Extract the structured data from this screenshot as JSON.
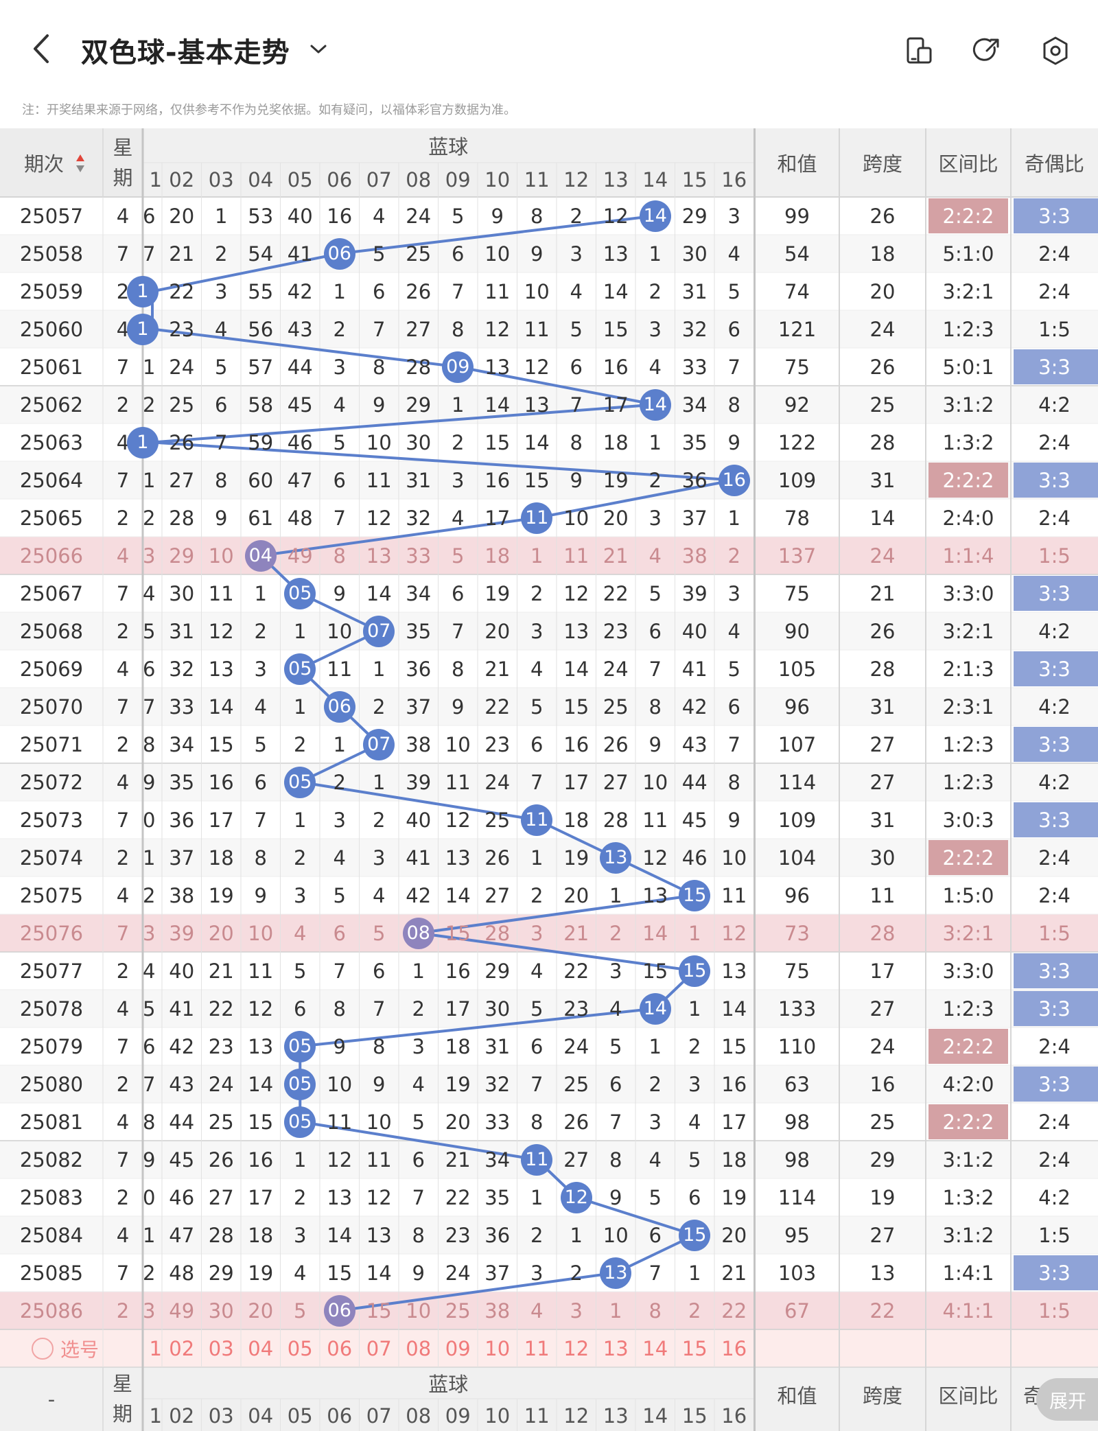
{
  "header": {
    "title": "双色球-基本走势",
    "icons": [
      "back-icon",
      "chevron-down-icon",
      "device-icon",
      "share-icon",
      "settings-icon"
    ]
  },
  "notice": "注：开奖结果来源于网络，仅供参考不作为兑奖依据。如有疑问，以福体彩官方数据为准。",
  "table": {
    "col_period": "期次",
    "col_week": "星期",
    "col_blue": "蓝球",
    "col_sum": "和值",
    "col_span": "跨度",
    "col_ratio": "区间比",
    "col_oddeven": "奇偶比",
    "blue_numbers": [
      "1",
      "02",
      "03",
      "04",
      "05",
      "06",
      "07",
      "08",
      "09",
      "10",
      "11",
      "12",
      "13",
      "14",
      "15",
      "16"
    ],
    "rows": [
      {
        "period": "25057",
        "week": "4",
        "fl": "6",
        "vals": [
          "20",
          "1",
          "53",
          "40",
          "16",
          "4",
          "24",
          "5",
          "9",
          "8",
          "2",
          "12",
          "",
          "29",
          "3"
        ],
        "blue": 14,
        "sum": "99",
        "span": "26",
        "ratio": "2:2:2",
        "oe": "3:3"
      },
      {
        "period": "25058",
        "week": "7",
        "fl": "7",
        "vals": [
          "21",
          "2",
          "54",
          "41",
          "",
          "5",
          "25",
          "6",
          "10",
          "9",
          "3",
          "13",
          "1",
          "30",
          "4"
        ],
        "blue": 6,
        "sum": "54",
        "span": "18",
        "ratio": "5:1:0",
        "oe": "2:4"
      },
      {
        "period": "25059",
        "week": "2",
        "fl": "",
        "vals": [
          "22",
          "3",
          "55",
          "42",
          "1",
          "6",
          "26",
          "7",
          "11",
          "10",
          "4",
          "14",
          "2",
          "31",
          "5"
        ],
        "blue": 1,
        "sum": "74",
        "span": "20",
        "ratio": "3:2:1",
        "oe": "2:4"
      },
      {
        "period": "25060",
        "week": "4",
        "fl": "",
        "vals": [
          "23",
          "4",
          "56",
          "43",
          "2",
          "7",
          "27",
          "8",
          "12",
          "11",
          "5",
          "15",
          "3",
          "32",
          "6"
        ],
        "blue": 1,
        "sum": "121",
        "span": "24",
        "ratio": "1:2:3",
        "oe": "1:5"
      },
      {
        "period": "25061",
        "week": "7",
        "fl": "1",
        "vals": [
          "24",
          "5",
          "57",
          "44",
          "3",
          "8",
          "28",
          "",
          "13",
          "12",
          "6",
          "16",
          "4",
          "33",
          "7"
        ],
        "blue": 9,
        "sum": "75",
        "span": "26",
        "ratio": "5:0:1",
        "oe": "3:3"
      },
      {
        "period": "25062",
        "week": "2",
        "fl": "2",
        "vals": [
          "25",
          "6",
          "58",
          "45",
          "4",
          "9",
          "29",
          "1",
          "14",
          "13",
          "7",
          "17",
          "",
          "34",
          "8"
        ],
        "blue": 14,
        "sum": "92",
        "span": "25",
        "ratio": "3:1:2",
        "oe": "4:2"
      },
      {
        "period": "25063",
        "week": "4",
        "fl": "",
        "vals": [
          "26",
          "7",
          "59",
          "46",
          "5",
          "10",
          "30",
          "2",
          "15",
          "14",
          "8",
          "18",
          "1",
          "35",
          "9"
        ],
        "blue": 1,
        "sum": "122",
        "span": "28",
        "ratio": "1:3:2",
        "oe": "2:4"
      },
      {
        "period": "25064",
        "week": "7",
        "fl": "1",
        "vals": [
          "27",
          "8",
          "60",
          "47",
          "6",
          "11",
          "31",
          "3",
          "16",
          "15",
          "9",
          "19",
          "2",
          "36",
          ""
        ],
        "blue": 16,
        "sum": "109",
        "span": "31",
        "ratio": "2:2:2",
        "oe": "3:3"
      },
      {
        "period": "25065",
        "week": "2",
        "fl": "2",
        "vals": [
          "28",
          "9",
          "61",
          "48",
          "7",
          "12",
          "32",
          "4",
          "17",
          "",
          "10",
          "20",
          "3",
          "37",
          "1"
        ],
        "blue": 11,
        "sum": "78",
        "span": "14",
        "ratio": "2:4:0",
        "oe": "2:4"
      },
      {
        "period": "25066",
        "week": "4",
        "fl": "3",
        "vals": [
          "29",
          "10",
          "",
          "49",
          "8",
          "13",
          "33",
          "5",
          "18",
          "1",
          "11",
          "21",
          "4",
          "38",
          "2"
        ],
        "blue": 4,
        "sum": "137",
        "span": "24",
        "ratio": "1:1:4",
        "oe": "1:5",
        "hl": true
      },
      {
        "period": "25067",
        "week": "7",
        "fl": "4",
        "vals": [
          "30",
          "11",
          "1",
          "",
          "9",
          "14",
          "34",
          "6",
          "19",
          "2",
          "12",
          "22",
          "5",
          "39",
          "3"
        ],
        "blue": 5,
        "sum": "75",
        "span": "21",
        "ratio": "3:3:0",
        "oe": "3:3"
      },
      {
        "period": "25068",
        "week": "2",
        "fl": "5",
        "vals": [
          "31",
          "12",
          "2",
          "1",
          "10",
          "",
          "35",
          "7",
          "20",
          "3",
          "13",
          "23",
          "6",
          "40",
          "4"
        ],
        "blue": 7,
        "sum": "90",
        "span": "26",
        "ratio": "3:2:1",
        "oe": "4:2"
      },
      {
        "period": "25069",
        "week": "4",
        "fl": "6",
        "vals": [
          "32",
          "13",
          "3",
          "",
          "11",
          "1",
          "36",
          "8",
          "21",
          "4",
          "14",
          "24",
          "7",
          "41",
          "5"
        ],
        "blue": 5,
        "sum": "105",
        "span": "28",
        "ratio": "2:1:3",
        "oe": "3:3"
      },
      {
        "period": "25070",
        "week": "7",
        "fl": "7",
        "vals": [
          "33",
          "14",
          "4",
          "1",
          "",
          "2",
          "37",
          "9",
          "22",
          "5",
          "15",
          "25",
          "8",
          "42",
          "6"
        ],
        "blue": 6,
        "sum": "96",
        "span": "31",
        "ratio": "2:3:1",
        "oe": "4:2"
      },
      {
        "period": "25071",
        "week": "2",
        "fl": "8",
        "vals": [
          "34",
          "15",
          "5",
          "2",
          "1",
          "",
          "38",
          "10",
          "23",
          "6",
          "16",
          "26",
          "9",
          "43",
          "7"
        ],
        "blue": 7,
        "sum": "107",
        "span": "27",
        "ratio": "1:2:3",
        "oe": "3:3"
      },
      {
        "period": "25072",
        "week": "4",
        "fl": "9",
        "vals": [
          "35",
          "16",
          "6",
          "",
          "2",
          "1",
          "39",
          "11",
          "24",
          "7",
          "17",
          "27",
          "10",
          "44",
          "8"
        ],
        "blue": 5,
        "sum": "114",
        "span": "27",
        "ratio": "1:2:3",
        "oe": "4:2"
      },
      {
        "period": "25073",
        "week": "7",
        "fl": "0",
        "vals": [
          "36",
          "17",
          "7",
          "1",
          "3",
          "2",
          "40",
          "12",
          "25",
          "",
          "18",
          "28",
          "11",
          "45",
          "9"
        ],
        "blue": 11,
        "sum": "109",
        "span": "31",
        "ratio": "3:0:3",
        "oe": "3:3"
      },
      {
        "period": "25074",
        "week": "2",
        "fl": "1",
        "vals": [
          "37",
          "18",
          "8",
          "2",
          "4",
          "3",
          "41",
          "13",
          "26",
          "1",
          "19",
          "",
          "12",
          "46",
          "10"
        ],
        "blue": 13,
        "sum": "104",
        "span": "30",
        "ratio": "2:2:2",
        "oe": "2:4"
      },
      {
        "period": "25075",
        "week": "4",
        "fl": "2",
        "vals": [
          "38",
          "19",
          "9",
          "3",
          "5",
          "4",
          "42",
          "14",
          "27",
          "2",
          "20",
          "1",
          "13",
          "",
          "11"
        ],
        "blue": 15,
        "sum": "96",
        "span": "11",
        "ratio": "1:5:0",
        "oe": "2:4"
      },
      {
        "period": "25076",
        "week": "7",
        "fl": "3",
        "vals": [
          "39",
          "20",
          "10",
          "4",
          "6",
          "5",
          "",
          "15",
          "28",
          "3",
          "21",
          "2",
          "14",
          "1",
          "12"
        ],
        "blue": 8,
        "sum": "73",
        "span": "28",
        "ratio": "3:2:1",
        "oe": "1:5",
        "hl": true
      },
      {
        "period": "25077",
        "week": "2",
        "fl": "4",
        "vals": [
          "40",
          "21",
          "11",
          "5",
          "7",
          "6",
          "1",
          "16",
          "29",
          "4",
          "22",
          "3",
          "15",
          "",
          "13"
        ],
        "blue": 15,
        "sum": "75",
        "span": "17",
        "ratio": "3:3:0",
        "oe": "3:3"
      },
      {
        "period": "25078",
        "week": "4",
        "fl": "5",
        "vals": [
          "41",
          "22",
          "12",
          "6",
          "8",
          "7",
          "2",
          "17",
          "30",
          "5",
          "23",
          "4",
          "",
          "1",
          "14"
        ],
        "blue": 14,
        "sum": "133",
        "span": "27",
        "ratio": "1:2:3",
        "oe": "3:3"
      },
      {
        "period": "25079",
        "week": "7",
        "fl": "6",
        "vals": [
          "42",
          "23",
          "13",
          "",
          "9",
          "8",
          "3",
          "18",
          "31",
          "6",
          "24",
          "5",
          "1",
          "2",
          "15"
        ],
        "blue": 5,
        "sum": "110",
        "span": "24",
        "ratio": "2:2:2",
        "oe": "2:4"
      },
      {
        "period": "25080",
        "week": "2",
        "fl": "7",
        "vals": [
          "43",
          "24",
          "14",
          "",
          "10",
          "9",
          "4",
          "19",
          "32",
          "7",
          "25",
          "6",
          "2",
          "3",
          "16"
        ],
        "blue": 5,
        "sum": "63",
        "span": "16",
        "ratio": "4:2:0",
        "oe": "3:3"
      },
      {
        "period": "25081",
        "week": "4",
        "fl": "8",
        "vals": [
          "44",
          "25",
          "15",
          "",
          "11",
          "10",
          "5",
          "20",
          "33",
          "8",
          "26",
          "7",
          "3",
          "4",
          "17"
        ],
        "blue": 5,
        "sum": "98",
        "span": "25",
        "ratio": "2:2:2",
        "oe": "2:4"
      },
      {
        "period": "25082",
        "week": "7",
        "fl": "9",
        "vals": [
          "45",
          "26",
          "16",
          "1",
          "12",
          "11",
          "6",
          "21",
          "34",
          "",
          "27",
          "8",
          "4",
          "5",
          "18"
        ],
        "blue": 11,
        "sum": "98",
        "span": "29",
        "ratio": "3:1:2",
        "oe": "2:4"
      },
      {
        "period": "25083",
        "week": "2",
        "fl": "0",
        "vals": [
          "46",
          "27",
          "17",
          "2",
          "13",
          "12",
          "7",
          "22",
          "35",
          "1",
          "",
          "9",
          "5",
          "6",
          "19"
        ],
        "blue": 12,
        "sum": "114",
        "span": "19",
        "ratio": "1:3:2",
        "oe": "4:2"
      },
      {
        "period": "25084",
        "week": "4",
        "fl": "1",
        "vals": [
          "47",
          "28",
          "18",
          "3",
          "14",
          "13",
          "8",
          "23",
          "36",
          "2",
          "1",
          "10",
          "6",
          "",
          "20"
        ],
        "blue": 15,
        "sum": "95",
        "span": "27",
        "ratio": "3:1:2",
        "oe": "1:5"
      },
      {
        "period": "25085",
        "week": "7",
        "fl": "2",
        "vals": [
          "48",
          "29",
          "19",
          "4",
          "15",
          "14",
          "9",
          "24",
          "37",
          "3",
          "2",
          "",
          "7",
          "1",
          "21"
        ],
        "blue": 13,
        "sum": "103",
        "span": "13",
        "ratio": "1:4:1",
        "oe": "3:3"
      },
      {
        "period": "25086",
        "week": "2",
        "fl": "3",
        "vals": [
          "49",
          "30",
          "20",
          "5",
          "",
          "15",
          "10",
          "25",
          "38",
          "4",
          "3",
          "1",
          "8",
          "2",
          "22"
        ],
        "blue": 6,
        "sum": "67",
        "span": "22",
        "ratio": "4:1:1",
        "oe": "1:5",
        "hl": true
      }
    ],
    "select_label": "选号",
    "footer_period": "-",
    "footer_oddeven_partial": "奇"
  },
  "fab_label": "展开",
  "colors": {
    "blue_ball": "#5b7fcc",
    "purple_ball": "#8e84bd",
    "highlight_row": "#f6dcdf",
    "ratio_red": "#d4a1a4",
    "oe_blue": "#8fa3d7",
    "select_row": "#fdeceb",
    "header_bg": "#f0f0f0",
    "line": "#5b7fcc"
  }
}
